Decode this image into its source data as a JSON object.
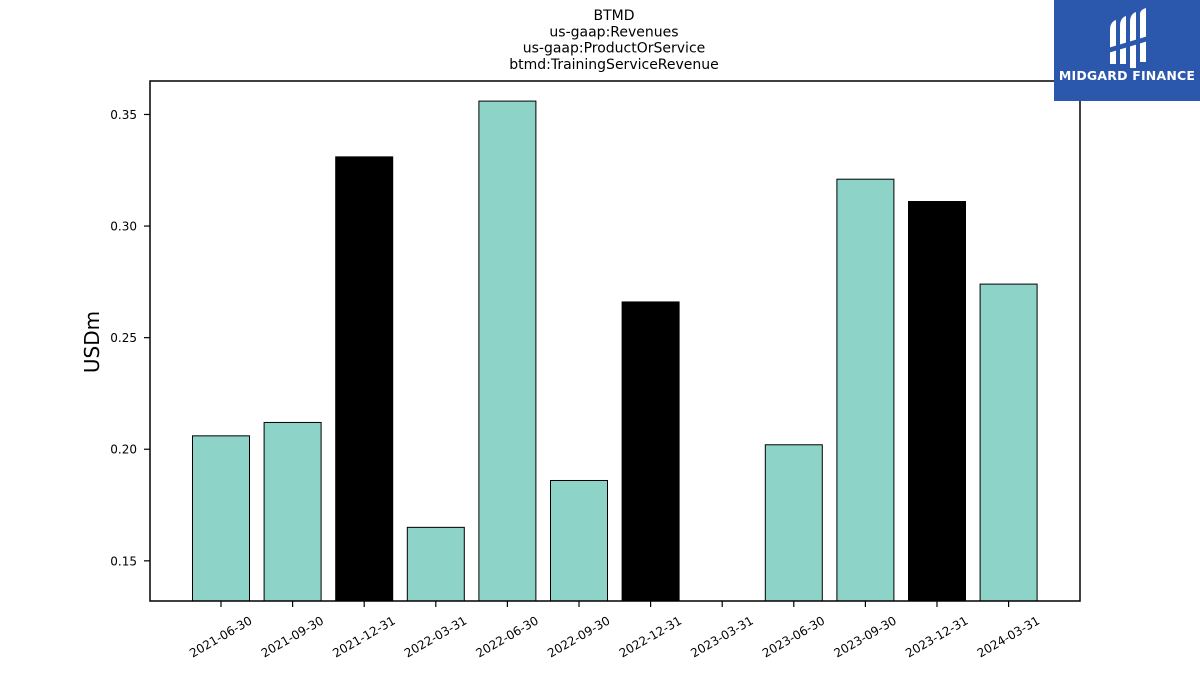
{
  "chart_data": {
    "type": "bar",
    "title": [
      "BTMD",
      "us-gaap:Revenues",
      "us-gaap:ProductOrService",
      "btmd:TrainingServiceRevenue"
    ],
    "ylabel": "USDm",
    "xlabel": "",
    "categories": [
      "2021-06-30",
      "2021-09-30",
      "2021-12-31",
      "2022-03-31",
      "2022-06-30",
      "2022-09-30",
      "2022-12-31",
      "2023-03-31",
      "2023-06-30",
      "2023-09-30",
      "2023-12-31",
      "2024-03-31"
    ],
    "values": [
      0.206,
      0.212,
      0.331,
      0.165,
      0.356,
      0.186,
      0.266,
      null,
      0.202,
      0.321,
      0.311,
      0.274
    ],
    "bar_colors": [
      "#8dd3c7",
      "#8dd3c7",
      "#000000",
      "#8dd3c7",
      "#8dd3c7",
      "#8dd3c7",
      "#000000",
      "#8dd3c7",
      "#8dd3c7",
      "#8dd3c7",
      "#000000",
      "#8dd3c7"
    ],
    "ylim": [
      0.132,
      0.365
    ],
    "yticks": [
      0.15,
      0.2,
      0.25,
      0.3,
      0.35
    ],
    "ytick_labels": [
      "0.15",
      "0.20",
      "0.25",
      "0.30",
      "0.35"
    ],
    "grid": false
  },
  "logo": {
    "text": "MIDGARD FINANCE",
    "background": "#2b58ad"
  }
}
